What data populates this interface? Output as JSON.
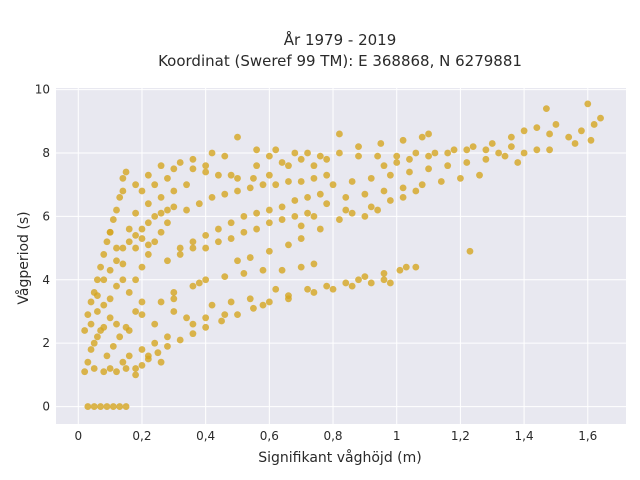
{
  "chart_data": {
    "type": "scatter",
    "title": {
      "line1": "År 1979 - 2019",
      "line2": "Koordinat (Sweref 99 TM): E 368868, N 6279881"
    },
    "xlabel": "Signifikant våghöjd (m)",
    "ylabel": "Vågperiod (s)",
    "xlim": [
      -0.07,
      1.72
    ],
    "ylim": [
      -0.55,
      10.05
    ],
    "x_ticks": [
      0,
      0.2,
      0.4,
      0.6,
      0.8,
      1,
      1.2,
      1.4,
      1.6
    ],
    "x_tick_labels": [
      "0",
      "0,2",
      "0,4",
      "0,6",
      "0,8",
      "1",
      "1,2",
      "1,4",
      "1,6"
    ],
    "y_ticks": [
      0,
      2,
      4,
      6,
      8,
      10
    ],
    "y_tick_labels": [
      "0",
      "2",
      "4",
      "6",
      "8",
      "10"
    ],
    "grid": true,
    "legend": "none",
    "colors": {
      "marker": "#d4a520",
      "plot_background": "#e8e8f0",
      "grid": "#ffffff"
    },
    "series": [
      {
        "points": [
          [
            0.03,
            0
          ],
          [
            0.05,
            0
          ],
          [
            0.07,
            0
          ],
          [
            0.09,
            0
          ],
          [
            0.11,
            0
          ],
          [
            0.13,
            0
          ],
          [
            0.15,
            0
          ],
          [
            0.02,
            1.1
          ],
          [
            0.02,
            2.4
          ],
          [
            0.03,
            2.9
          ],
          [
            0.04,
            3.3
          ],
          [
            0.05,
            3.6
          ],
          [
            0.06,
            4.0
          ],
          [
            0.07,
            4.4
          ],
          [
            0.08,
            4.8
          ],
          [
            0.09,
            5.2
          ],
          [
            0.1,
            5.5
          ],
          [
            0.11,
            5.9
          ],
          [
            0.12,
            6.2
          ],
          [
            0.13,
            6.6
          ],
          [
            0.14,
            7.2
          ],
          [
            0.15,
            7.4
          ],
          [
            0.05,
            1.2
          ],
          [
            0.08,
            1.1
          ],
          [
            0.12,
            1.1
          ],
          [
            0.15,
            1.2
          ],
          [
            0.18,
            1.2
          ],
          [
            0.2,
            1.3
          ],
          [
            0.22,
            1.5
          ],
          [
            0.25,
            1.7
          ],
          [
            0.28,
            1.9
          ],
          [
            0.32,
            2.1
          ],
          [
            0.36,
            2.3
          ],
          [
            0.4,
            2.5
          ],
          [
            0.45,
            2.7
          ],
          [
            0.5,
            2.9
          ],
          [
            0.55,
            3.1
          ],
          [
            0.6,
            3.3
          ],
          [
            0.66,
            3.5
          ],
          [
            0.72,
            3.7
          ],
          [
            0.78,
            3.8
          ],
          [
            0.84,
            3.9
          ],
          [
            0.88,
            4.0
          ],
          [
            0.06,
            2.2
          ],
          [
            0.08,
            2.5
          ],
          [
            0.1,
            2.8
          ],
          [
            0.12,
            2.6
          ],
          [
            0.16,
            2.4
          ],
          [
            0.18,
            3.0
          ],
          [
            0.2,
            2.9
          ],
          [
            0.24,
            2.6
          ],
          [
            0.3,
            3.0
          ],
          [
            0.34,
            2.8
          ],
          [
            0.2,
            3.3
          ],
          [
            0.26,
            3.3
          ],
          [
            0.3,
            3.6
          ],
          [
            0.36,
            3.8
          ],
          [
            0.4,
            4.0
          ],
          [
            0.46,
            4.1
          ],
          [
            0.52,
            4.2
          ],
          [
            0.58,
            4.3
          ],
          [
            0.64,
            4.3
          ],
          [
            0.7,
            4.4
          ],
          [
            0.74,
            4.5
          ],
          [
            0.96,
            4.2
          ],
          [
            1.03,
            4.4
          ],
          [
            0.06,
            3.5
          ],
          [
            0.08,
            4.0
          ],
          [
            0.1,
            4.3
          ],
          [
            0.12,
            4.6
          ],
          [
            0.14,
            5.0
          ],
          [
            0.16,
            5.2
          ],
          [
            0.18,
            5.4
          ],
          [
            0.2,
            5.6
          ],
          [
            0.22,
            5.8
          ],
          [
            0.24,
            6.0
          ],
          [
            0.26,
            6.1
          ],
          [
            0.28,
            6.2
          ],
          [
            0.3,
            6.3
          ],
          [
            0.16,
            3.6
          ],
          [
            0.18,
            4.0
          ],
          [
            0.2,
            4.4
          ],
          [
            0.22,
            4.8
          ],
          [
            0.24,
            5.2
          ],
          [
            0.26,
            5.5
          ],
          [
            0.28,
            5.8
          ],
          [
            0.2,
            6.8
          ],
          [
            0.24,
            7.0
          ],
          [
            0.28,
            7.2
          ],
          [
            0.3,
            7.5
          ],
          [
            0.32,
            7.7
          ],
          [
            0.36,
            7.5
          ],
          [
            0.4,
            7.4
          ],
          [
            0.44,
            7.3
          ],
          [
            0.48,
            7.3
          ],
          [
            0.5,
            7.2
          ],
          [
            0.55,
            7.2
          ],
          [
            0.6,
            7.3
          ],
          [
            0.32,
            5.0
          ],
          [
            0.36,
            5.2
          ],
          [
            0.4,
            5.4
          ],
          [
            0.44,
            5.6
          ],
          [
            0.48,
            5.8
          ],
          [
            0.52,
            6.0
          ],
          [
            0.56,
            6.1
          ],
          [
            0.6,
            6.2
          ],
          [
            0.64,
            6.3
          ],
          [
            0.68,
            6.5
          ],
          [
            0.72,
            6.6
          ],
          [
            0.76,
            6.7
          ],
          [
            0.34,
            6.2
          ],
          [
            0.38,
            6.4
          ],
          [
            0.42,
            6.6
          ],
          [
            0.46,
            6.7
          ],
          [
            0.5,
            6.8
          ],
          [
            0.54,
            6.9
          ],
          [
            0.58,
            7.0
          ],
          [
            0.62,
            7.0
          ],
          [
            0.66,
            7.1
          ],
          [
            0.7,
            7.1
          ],
          [
            0.74,
            7.2
          ],
          [
            0.78,
            7.3
          ],
          [
            0.64,
            7.7
          ],
          [
            0.7,
            7.8
          ],
          [
            0.76,
            7.9
          ],
          [
            0.82,
            8.0
          ],
          [
            0.88,
            7.9
          ],
          [
            0.94,
            7.9
          ],
          [
            1.0,
            7.9
          ],
          [
            1.06,
            8.0
          ],
          [
            1.12,
            8.0
          ],
          [
            1.18,
            8.1
          ],
          [
            1.22,
            8.1
          ],
          [
            0.8,
            7.0
          ],
          [
            0.86,
            7.1
          ],
          [
            0.92,
            7.2
          ],
          [
            0.98,
            7.3
          ],
          [
            1.04,
            7.4
          ],
          [
            1.1,
            7.5
          ],
          [
            1.16,
            7.6
          ],
          [
            1.22,
            7.7
          ],
          [
            1.28,
            7.8
          ],
          [
            1.34,
            7.9
          ],
          [
            1.4,
            8.0
          ],
          [
            1.44,
            8.1
          ],
          [
            0.84,
            6.6
          ],
          [
            0.9,
            6.7
          ],
          [
            0.96,
            6.8
          ],
          [
            1.02,
            6.9
          ],
          [
            1.08,
            7.0
          ],
          [
            1.14,
            7.1
          ],
          [
            1.2,
            7.2
          ],
          [
            1.26,
            7.3
          ],
          [
            1.3,
            8.3
          ],
          [
            1.36,
            8.5
          ],
          [
            1.4,
            8.7
          ],
          [
            1.44,
            8.8
          ],
          [
            1.48,
            8.6
          ],
          [
            1.5,
            8.9
          ],
          [
            1.54,
            8.5
          ],
          [
            1.58,
            8.7
          ],
          [
            1.62,
            8.9
          ],
          [
            1.6,
            9.55
          ],
          [
            1.64,
            9.1
          ],
          [
            1.47,
            9.4
          ],
          [
            1.56,
            8.3
          ],
          [
            1.61,
            8.4
          ],
          [
            1.48,
            8.1
          ],
          [
            1.38,
            7.7
          ],
          [
            1.23,
            4.9
          ],
          [
            0.5,
            8.5
          ],
          [
            0.82,
            8.6
          ],
          [
            0.88,
            8.2
          ],
          [
            0.95,
            8.3
          ],
          [
            1.02,
            8.4
          ],
          [
            1.08,
            8.5
          ],
          [
            1.1,
            8.6
          ],
          [
            0.72,
            8.0
          ],
          [
            0.78,
            7.8
          ],
          [
            0.62,
            8.1
          ],
          [
            0.46,
            7.9
          ],
          [
            0.42,
            8.0
          ],
          [
            0.56,
            7.6
          ],
          [
            0.3,
            3.4
          ],
          [
            0.38,
            3.9
          ],
          [
            0.42,
            3.2
          ],
          [
            0.48,
            3.3
          ],
          [
            0.54,
            3.4
          ],
          [
            0.62,
            3.7
          ],
          [
            0.36,
            2.6
          ],
          [
            0.28,
            2.2
          ],
          [
            0.24,
            2.0
          ],
          [
            0.2,
            1.8
          ],
          [
            0.16,
            1.6
          ],
          [
            0.26,
            1.4
          ],
          [
            0.18,
            1.0
          ],
          [
            0.1,
            1.2
          ],
          [
            0.14,
            1.4
          ],
          [
            0.22,
            1.6
          ],
          [
            0.09,
            1.6
          ],
          [
            0.11,
            1.9
          ],
          [
            0.13,
            2.2
          ],
          [
            0.15,
            2.5
          ],
          [
            0.4,
            2.8
          ],
          [
            0.46,
            2.9
          ],
          [
            0.58,
            3.2
          ],
          [
            0.66,
            3.4
          ],
          [
            0.74,
            3.6
          ],
          [
            0.8,
            3.7
          ],
          [
            0.86,
            3.8
          ],
          [
            0.14,
            4.5
          ],
          [
            0.12,
            5.0
          ],
          [
            0.1,
            5.5
          ],
          [
            0.18,
            5.0
          ],
          [
            0.2,
            5.3
          ],
          [
            0.22,
            5.1
          ],
          [
            0.16,
            5.6
          ],
          [
            0.18,
            6.1
          ],
          [
            0.22,
            6.4
          ],
          [
            0.26,
            6.6
          ],
          [
            0.3,
            6.8
          ],
          [
            0.34,
            7.0
          ],
          [
            0.28,
            4.6
          ],
          [
            0.32,
            4.8
          ],
          [
            0.36,
            5.0
          ],
          [
            0.4,
            5.0
          ],
          [
            0.44,
            5.2
          ],
          [
            0.48,
            5.3
          ],
          [
            0.52,
            5.5
          ],
          [
            0.56,
            5.6
          ],
          [
            0.6,
            5.8
          ],
          [
            0.64,
            5.9
          ],
          [
            0.68,
            6.0
          ],
          [
            0.72,
            6.1
          ],
          [
            0.5,
            4.6
          ],
          [
            0.54,
            4.7
          ],
          [
            0.6,
            4.9
          ],
          [
            0.66,
            5.1
          ],
          [
            0.7,
            5.3
          ],
          [
            0.76,
            5.6
          ],
          [
            0.82,
            5.9
          ],
          [
            0.86,
            6.1
          ],
          [
            0.92,
            6.3
          ],
          [
            0.96,
            7.6
          ],
          [
            1.0,
            7.7
          ],
          [
            1.04,
            7.8
          ],
          [
            1.1,
            7.9
          ],
          [
            1.16,
            8.0
          ],
          [
            1.24,
            8.2
          ],
          [
            1.28,
            8.1
          ],
          [
            1.32,
            8.0
          ],
          [
            1.36,
            8.2
          ],
          [
            0.9,
            6.0
          ],
          [
            0.94,
            6.2
          ],
          [
            0.98,
            6.5
          ],
          [
            1.02,
            6.6
          ],
          [
            1.06,
            6.8
          ],
          [
            0.84,
            6.2
          ],
          [
            0.78,
            6.4
          ],
          [
            0.74,
            6.0
          ],
          [
            0.7,
            5.7
          ],
          [
            0.56,
            8.1
          ],
          [
            0.6,
            7.9
          ],
          [
            0.66,
            7.6
          ],
          [
            0.68,
            8.0
          ],
          [
            0.74,
            7.6
          ],
          [
            0.4,
            7.6
          ],
          [
            0.36,
            7.8
          ],
          [
            0.26,
            7.6
          ],
          [
            0.22,
            7.3
          ],
          [
            0.18,
            7.0
          ],
          [
            0.14,
            6.8
          ],
          [
            0.04,
            1.8
          ],
          [
            0.03,
            1.4
          ],
          [
            0.05,
            2.0
          ],
          [
            0.07,
            2.4
          ],
          [
            0.04,
            2.6
          ],
          [
            0.06,
            3.0
          ],
          [
            0.08,
            3.2
          ],
          [
            0.1,
            3.4
          ],
          [
            0.12,
            3.8
          ],
          [
            0.14,
            4.0
          ],
          [
            0.96,
            4.0
          ],
          [
            0.98,
            3.9
          ],
          [
            1.01,
            4.3
          ],
          [
            1.06,
            4.4
          ],
          [
            0.9,
            4.1
          ],
          [
            0.92,
            3.9
          ]
        ]
      }
    ]
  }
}
